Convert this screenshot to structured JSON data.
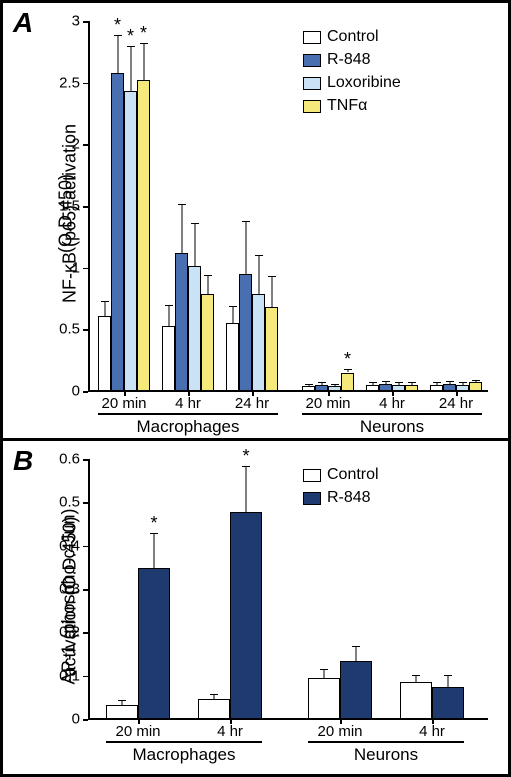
{
  "panelA": {
    "label": "A",
    "ytitle1": "NF-κB (p65) activation",
    "ytitle2": "(O.D.450)",
    "ylim": [
      0,
      3
    ],
    "ytick_step": 0.5,
    "legend": [
      {
        "label": "Control",
        "color": "#ffffff"
      },
      {
        "label": "R-848",
        "color": "#4a6fb0"
      },
      {
        "label": "Loxoribine",
        "color": "#c9e2f5"
      },
      {
        "label": "TNFα",
        "color": "#f4e97a"
      }
    ],
    "groups": [
      {
        "name": "Macrophages",
        "clusters": [
          {
            "xlabel": "20 min",
            "bars": [
              {
                "series": 0,
                "value": 0.61,
                "err": 0.12
              },
              {
                "series": 1,
                "value": 2.58,
                "err": 0.31,
                "star": true
              },
              {
                "series": 2,
                "value": 2.43,
                "err": 0.37,
                "star": true
              },
              {
                "series": 3,
                "value": 2.52,
                "err": 0.3,
                "star": true
              }
            ]
          },
          {
            "xlabel": "4 hr",
            "bars": [
              {
                "series": 0,
                "value": 0.53,
                "err": 0.17
              },
              {
                "series": 1,
                "value": 1.12,
                "err": 0.4
              },
              {
                "series": 2,
                "value": 1.01,
                "err": 0.35
              },
              {
                "series": 3,
                "value": 0.79,
                "err": 0.15
              }
            ]
          },
          {
            "xlabel": "24 hr",
            "bars": [
              {
                "series": 0,
                "value": 0.55,
                "err": 0.14
              },
              {
                "series": 1,
                "value": 0.95,
                "err": 0.43
              },
              {
                "series": 2,
                "value": 0.79,
                "err": 0.31
              },
              {
                "series": 3,
                "value": 0.68,
                "err": 0.25
              }
            ]
          }
        ]
      },
      {
        "name": "Neurons",
        "clusters": [
          {
            "xlabel": "20 min",
            "bars": [
              {
                "series": 0,
                "value": 0.04,
                "err": 0.02
              },
              {
                "series": 1,
                "value": 0.05,
                "err": 0.02
              },
              {
                "series": 2,
                "value": 0.04,
                "err": 0.02
              },
              {
                "series": 3,
                "value": 0.15,
                "err": 0.03,
                "star": true
              }
            ]
          },
          {
            "xlabel": "4 hr",
            "bars": [
              {
                "series": 0,
                "value": 0.05,
                "err": 0.02
              },
              {
                "series": 1,
                "value": 0.06,
                "err": 0.02
              },
              {
                "series": 2,
                "value": 0.05,
                "err": 0.02
              },
              {
                "series": 3,
                "value": 0.05,
                "err": 0.02
              }
            ]
          },
          {
            "xlabel": "24 hr",
            "bars": [
              {
                "series": 0,
                "value": 0.05,
                "err": 0.02
              },
              {
                "series": 1,
                "value": 0.06,
                "err": 0.02
              },
              {
                "series": 2,
                "value": 0.05,
                "err": 0.02
              },
              {
                "series": 3,
                "value": 0.07,
                "err": 0.02
              }
            ]
          }
        ]
      }
    ]
  },
  "panelB": {
    "label": "B",
    "ytitle1": "AP-1 (phospho-c-Jun)",
    "ytitle2": "activation (O.D.450)",
    "ylim": [
      0,
      0.6
    ],
    "ytick_step": 0.1,
    "legend": [
      {
        "label": "Control",
        "color": "#ffffff"
      },
      {
        "label": "R-848",
        "color": "#1e3a6e"
      }
    ],
    "groups": [
      {
        "name": "Macrophages",
        "clusters": [
          {
            "xlabel": "20 min",
            "bars": [
              {
                "series": 0,
                "value": 0.033,
                "err": 0.012
              },
              {
                "series": 1,
                "value": 0.349,
                "err": 0.08,
                "star": true
              }
            ]
          },
          {
            "xlabel": "4 hr",
            "bars": [
              {
                "series": 0,
                "value": 0.047,
                "err": 0.01
              },
              {
                "series": 1,
                "value": 0.478,
                "err": 0.105,
                "star": true
              }
            ]
          }
        ]
      },
      {
        "name": "Neurons",
        "clusters": [
          {
            "xlabel": "20 min",
            "bars": [
              {
                "series": 0,
                "value": 0.094,
                "err": 0.022
              },
              {
                "series": 1,
                "value": 0.134,
                "err": 0.035
              }
            ]
          },
          {
            "xlabel": "4 hr",
            "bars": [
              {
                "series": 0,
                "value": 0.085,
                "err": 0.016
              },
              {
                "series": 1,
                "value": 0.074,
                "err": 0.028
              }
            ]
          }
        ]
      }
    ]
  }
}
